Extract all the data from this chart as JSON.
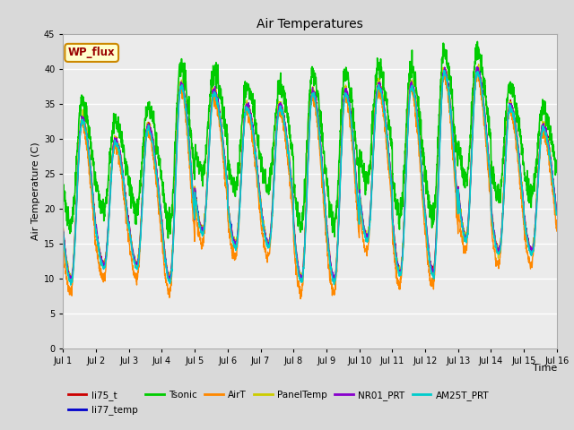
{
  "title": "Air Temperatures",
  "xlabel": "Time",
  "ylabel": "Air Temperature (C)",
  "ylim": [
    0,
    45
  ],
  "yticks": [
    0,
    5,
    10,
    15,
    20,
    25,
    30,
    35,
    40,
    45
  ],
  "xlim_start": 0,
  "xlim_end": 15,
  "xtick_labels": [
    "Jul 1",
    "Jul 2",
    "Jul 3",
    "Jul 4",
    "Jul 5",
    "Jul 6",
    "Jul 7",
    "Jul 8",
    "Jul 9",
    "Jul 10",
    "Jul 11",
    "Jul 12",
    "Jul 13",
    "Jul 14",
    "Jul 15",
    "Jul 16"
  ],
  "series": [
    {
      "name": "li75_t",
      "color": "#cc0000",
      "lw": 1.0
    },
    {
      "name": "li77_temp",
      "color": "#0000cc",
      "lw": 1.0
    },
    {
      "name": "Tsonic",
      "color": "#00cc00",
      "lw": 1.2
    },
    {
      "name": "AirT",
      "color": "#ff8800",
      "lw": 1.0
    },
    {
      "name": "PanelTemp",
      "color": "#cccc00",
      "lw": 1.0
    },
    {
      "name": "NR01_PRT",
      "color": "#8800cc",
      "lw": 1.0
    },
    {
      "name": "AM25T_PRT",
      "color": "#00cccc",
      "lw": 1.2
    }
  ],
  "annotation_text": "WP_flux",
  "annotation_color": "#990000",
  "annotation_bg": "#ffffcc",
  "annotation_edge": "#cc8800",
  "bg_color": "#d9d9d9",
  "plot_bg_color": "#ebebeb",
  "grid_color": "white"
}
